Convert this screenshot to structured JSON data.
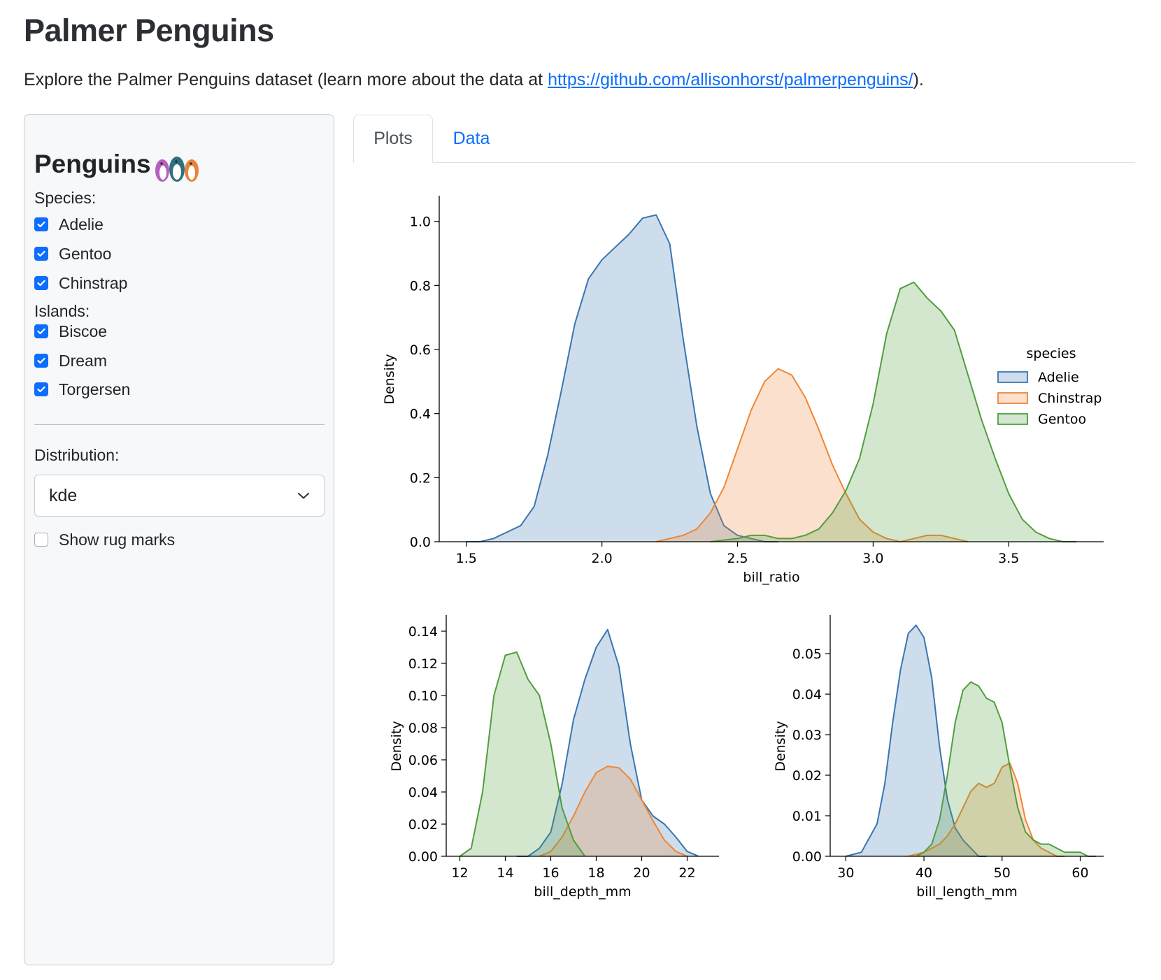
{
  "header": {
    "title": "Palmer Penguins",
    "intro_prefix": "Explore the Palmer Penguins dataset (learn more about the data at ",
    "intro_link": "https://github.com/allisonhorst/palmerpenguins/",
    "intro_suffix": ")."
  },
  "sidebar": {
    "title": "Penguins",
    "species_label": "Species:",
    "species": [
      {
        "label": "Adelie",
        "checked": true
      },
      {
        "label": "Gentoo",
        "checked": true
      },
      {
        "label": "Chinstrap",
        "checked": true
      }
    ],
    "islands_label": "Islands:",
    "islands": [
      {
        "label": "Biscoe",
        "checked": true
      },
      {
        "label": "Dream",
        "checked": true
      },
      {
        "label": "Torgersen",
        "checked": true
      }
    ],
    "distribution_label": "Distribution:",
    "distribution_value": "kde",
    "rug_label": "Show rug marks",
    "rug_checked": false
  },
  "tabs": [
    {
      "label": "Plots",
      "active": true
    },
    {
      "label": "Data",
      "active": false
    }
  ],
  "colors": {
    "adelie": "#3a76af",
    "chinstrap": "#ef8636",
    "gentoo": "#519e3e",
    "accent": "#0d6efd"
  },
  "chart_data": [
    {
      "type": "area",
      "xlabel": "bill_ratio",
      "ylabel": "Density",
      "xlim": [
        1.4,
        3.85
      ],
      "ylim": [
        0,
        1.08
      ],
      "xticks": [
        1.5,
        2.0,
        2.5,
        3.0,
        3.5
      ],
      "yticks": [
        0.0,
        0.2,
        0.4,
        0.6,
        0.8,
        1.0
      ],
      "tick_decimals": 1,
      "legend": {
        "title": "species",
        "placement": "center-right",
        "entries": [
          "Adelie",
          "Chinstrap",
          "Gentoo"
        ]
      },
      "series": [
        {
          "name": "Adelie",
          "color": "#3a76af",
          "x": [
            1.5,
            1.55,
            1.6,
            1.65,
            1.7,
            1.75,
            1.8,
            1.85,
            1.9,
            1.95,
            2.0,
            2.05,
            2.1,
            2.15,
            2.2,
            2.25,
            2.3,
            2.35,
            2.4,
            2.45,
            2.5,
            2.55,
            2.6,
            2.65
          ],
          "y": [
            0.0,
            0.0,
            0.01,
            0.03,
            0.05,
            0.11,
            0.27,
            0.47,
            0.68,
            0.82,
            0.88,
            0.92,
            0.96,
            1.01,
            1.02,
            0.93,
            0.63,
            0.36,
            0.15,
            0.05,
            0.02,
            0.01,
            0.0,
            0.0
          ]
        },
        {
          "name": "Chinstrap",
          "color": "#ef8636",
          "x": [
            2.2,
            2.25,
            2.3,
            2.35,
            2.4,
            2.45,
            2.5,
            2.55,
            2.6,
            2.65,
            2.7,
            2.75,
            2.8,
            2.85,
            2.9,
            2.95,
            3.0,
            3.05,
            3.1,
            3.15,
            3.2,
            3.25,
            3.3,
            3.35
          ],
          "y": [
            0.0,
            0.01,
            0.02,
            0.04,
            0.09,
            0.17,
            0.29,
            0.41,
            0.5,
            0.54,
            0.52,
            0.45,
            0.35,
            0.24,
            0.15,
            0.07,
            0.03,
            0.01,
            0.0,
            0.01,
            0.02,
            0.02,
            0.01,
            0.0
          ]
        },
        {
          "name": "Gentoo",
          "color": "#519e3e",
          "x": [
            2.4,
            2.5,
            2.55,
            2.6,
            2.65,
            2.7,
            2.75,
            2.8,
            2.85,
            2.9,
            2.95,
            3.0,
            3.05,
            3.1,
            3.15,
            3.2,
            3.25,
            3.3,
            3.35,
            3.4,
            3.45,
            3.5,
            3.55,
            3.6,
            3.65,
            3.7,
            3.75
          ],
          "y": [
            0.0,
            0.01,
            0.02,
            0.02,
            0.01,
            0.01,
            0.02,
            0.04,
            0.09,
            0.16,
            0.26,
            0.43,
            0.65,
            0.79,
            0.81,
            0.76,
            0.72,
            0.66,
            0.52,
            0.38,
            0.26,
            0.15,
            0.07,
            0.03,
            0.01,
            0.0,
            0.0
          ]
        }
      ]
    },
    {
      "type": "area",
      "xlabel": "bill_depth_mm",
      "ylabel": "Density",
      "xlim": [
        11.4,
        23.4
      ],
      "ylim": [
        0,
        0.15
      ],
      "xticks": [
        12,
        14,
        16,
        18,
        20,
        22
      ],
      "yticks": [
        0.0,
        0.02,
        0.04,
        0.06,
        0.08,
        0.1,
        0.12,
        0.14
      ],
      "tick_decimals": 2,
      "series": [
        {
          "name": "Adelie",
          "color": "#3a76af",
          "x": [
            14.5,
            15,
            15.5,
            16,
            16.5,
            17,
            17.5,
            18,
            18.5,
            19,
            19.5,
            20,
            20.5,
            21,
            21.5,
            22,
            22.5
          ],
          "y": [
            0.0,
            0.0,
            0.005,
            0.015,
            0.045,
            0.085,
            0.11,
            0.13,
            0.141,
            0.118,
            0.07,
            0.035,
            0.025,
            0.02,
            0.012,
            0.003,
            0.0
          ]
        },
        {
          "name": "Chinstrap",
          "color": "#ef8636",
          "x": [
            15.5,
            16,
            16.5,
            17,
            17.5,
            18,
            18.5,
            19,
            19.5,
            20,
            20.5,
            21,
            21.5,
            22
          ],
          "y": [
            0.0,
            0.003,
            0.012,
            0.025,
            0.04,
            0.052,
            0.056,
            0.055,
            0.048,
            0.035,
            0.022,
            0.01,
            0.003,
            0.0
          ]
        },
        {
          "name": "Gentoo",
          "color": "#519e3e",
          "x": [
            12,
            12.5,
            13,
            13.5,
            14,
            14.5,
            15,
            15.5,
            16,
            16.5,
            17,
            17.5
          ],
          "y": [
            0.0,
            0.005,
            0.04,
            0.1,
            0.125,
            0.127,
            0.11,
            0.1,
            0.07,
            0.03,
            0.01,
            0.0
          ]
        }
      ]
    },
    {
      "type": "area",
      "xlabel": "bill_length_mm",
      "ylabel": "Density",
      "xlim": [
        28,
        63
      ],
      "ylim": [
        0,
        0.0595
      ],
      "xticks": [
        30,
        40,
        50,
        60
      ],
      "yticks": [
        0.0,
        0.01,
        0.02,
        0.03,
        0.04,
        0.05
      ],
      "tick_decimals": 2,
      "series": [
        {
          "name": "Adelie",
          "color": "#3a76af",
          "x": [
            30,
            32,
            34,
            35,
            36,
            37,
            38,
            39,
            40,
            41,
            42,
            43,
            44,
            45,
            46,
            47,
            48
          ],
          "y": [
            0.0,
            0.001,
            0.008,
            0.018,
            0.033,
            0.046,
            0.055,
            0.057,
            0.054,
            0.044,
            0.027,
            0.014,
            0.007,
            0.004,
            0.002,
            0.0,
            0.0
          ]
        },
        {
          "name": "Chinstrap",
          "color": "#ef8636",
          "x": [
            38,
            40,
            42,
            43,
            44,
            45,
            46,
            47,
            48,
            49,
            50,
            51,
            52,
            53,
            54,
            55,
            56,
            57,
            58
          ],
          "y": [
            0.0,
            0.001,
            0.003,
            0.005,
            0.008,
            0.012,
            0.016,
            0.018,
            0.017,
            0.018,
            0.022,
            0.023,
            0.018,
            0.009,
            0.004,
            0.002,
            0.001,
            0.0,
            0.0
          ]
        },
        {
          "name": "Gentoo",
          "color": "#519e3e",
          "x": [
            39,
            40,
            41,
            42,
            43,
            44,
            45,
            46,
            47,
            48,
            49,
            50,
            51,
            52,
            53,
            54,
            55,
            56,
            57,
            58,
            59,
            60,
            61,
            62
          ],
          "y": [
            0.0,
            0.001,
            0.003,
            0.009,
            0.02,
            0.033,
            0.041,
            0.043,
            0.042,
            0.039,
            0.038,
            0.033,
            0.022,
            0.012,
            0.006,
            0.004,
            0.003,
            0.003,
            0.002,
            0.001,
            0.001,
            0.001,
            0.0,
            0.0
          ]
        }
      ]
    }
  ]
}
